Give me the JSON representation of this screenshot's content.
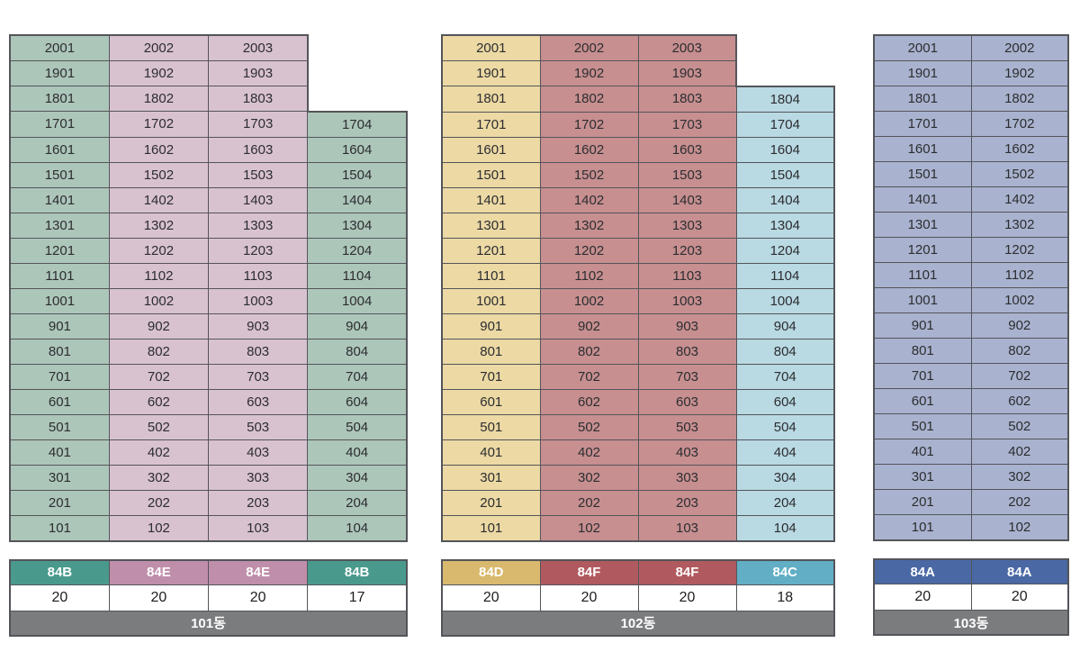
{
  "colors": {
    "background": "#ffffff",
    "grid_border": "#54555a",
    "name_bar_bg": "#7b7c7e",
    "count_bg": "#ffffff",
    "unit_text": "#2c2d30",
    "header_text": "#ffffff"
  },
  "buildings": [
    {
      "id": "101",
      "name_label": "101동",
      "floors_total": 20,
      "columns": [
        {
          "type_label": "84B",
          "unit_count": "20",
          "cell_color": "#adc6ba",
          "header_color": "#499a8c",
          "units": [
            "2001",
            "1901",
            "1801",
            "1701",
            "1601",
            "1501",
            "1401",
            "1301",
            "1201",
            "1101",
            "1001",
            "901",
            "801",
            "701",
            "601",
            "501",
            "401",
            "301",
            "201",
            "101"
          ]
        },
        {
          "type_label": "84E",
          "unit_count": "20",
          "cell_color": "#d9c2d0",
          "header_color": "#bf8eaa",
          "units": [
            "2002",
            "1902",
            "1802",
            "1702",
            "1602",
            "1502",
            "1402",
            "1302",
            "1202",
            "1102",
            "1002",
            "902",
            "802",
            "702",
            "602",
            "502",
            "402",
            "302",
            "202",
            "102"
          ]
        },
        {
          "type_label": "84E",
          "unit_count": "20",
          "cell_color": "#d9c2d0",
          "header_color": "#bf8eaa",
          "units": [
            "2003",
            "1903",
            "1803",
            "1703",
            "1603",
            "1503",
            "1403",
            "1303",
            "1203",
            "1103",
            "1003",
            "903",
            "803",
            "703",
            "603",
            "503",
            "403",
            "303",
            "203",
            "103"
          ]
        },
        {
          "type_label": "84B",
          "unit_count": "17",
          "cell_color": "#adc6ba",
          "header_color": "#499a8c",
          "units": [
            "1704",
            "1604",
            "1504",
            "1404",
            "1304",
            "1204",
            "1104",
            "1004",
            "904",
            "804",
            "704",
            "604",
            "504",
            "404",
            "304",
            "204",
            "104"
          ]
        }
      ]
    },
    {
      "id": "102",
      "name_label": "102동",
      "floors_total": 20,
      "columns": [
        {
          "type_label": "84D",
          "unit_count": "20",
          "cell_color": "#ecd9a4",
          "header_color": "#d8b96d",
          "units": [
            "2001",
            "1901",
            "1801",
            "1701",
            "1601",
            "1501",
            "1401",
            "1301",
            "1201",
            "1101",
            "1001",
            "901",
            "801",
            "701",
            "601",
            "501",
            "401",
            "301",
            "201",
            "101"
          ]
        },
        {
          "type_label": "84F",
          "unit_count": "20",
          "cell_color": "#c78f90",
          "header_color": "#b05a5f",
          "units": [
            "2002",
            "1902",
            "1802",
            "1702",
            "1602",
            "1502",
            "1402",
            "1302",
            "1202",
            "1102",
            "1002",
            "902",
            "802",
            "702",
            "602",
            "502",
            "402",
            "302",
            "202",
            "102"
          ]
        },
        {
          "type_label": "84F",
          "unit_count": "20",
          "cell_color": "#c78f90",
          "header_color": "#b05a5f",
          "units": [
            "2003",
            "1903",
            "1803",
            "1703",
            "1603",
            "1503",
            "1403",
            "1303",
            "1203",
            "1103",
            "1003",
            "903",
            "803",
            "703",
            "603",
            "503",
            "403",
            "303",
            "203",
            "103"
          ]
        },
        {
          "type_label": "84C",
          "unit_count": "18",
          "cell_color": "#b9d9e3",
          "header_color": "#61aec5",
          "units": [
            "1804",
            "1704",
            "1604",
            "1504",
            "1404",
            "1304",
            "1204",
            "1104",
            "1004",
            "904",
            "804",
            "704",
            "604",
            "504",
            "404",
            "304",
            "204",
            "104"
          ]
        }
      ]
    },
    {
      "id": "103",
      "name_label": "103동",
      "floors_total": 20,
      "columns": [
        {
          "type_label": "84A",
          "unit_count": "20",
          "cell_color": "#a9b3cf",
          "header_color": "#4a68a4",
          "units": [
            "2001",
            "1901",
            "1801",
            "1701",
            "1601",
            "1501",
            "1401",
            "1301",
            "1201",
            "1101",
            "1001",
            "901",
            "801",
            "701",
            "601",
            "501",
            "401",
            "301",
            "201",
            "101"
          ]
        },
        {
          "type_label": "84A",
          "unit_count": "20",
          "cell_color": "#a9b3cf",
          "header_color": "#4a68a4",
          "units": [
            "2002",
            "1902",
            "1802",
            "1702",
            "1602",
            "1502",
            "1402",
            "1302",
            "1202",
            "1102",
            "1002",
            "902",
            "802",
            "702",
            "602",
            "502",
            "402",
            "302",
            "202",
            "102"
          ]
        }
      ]
    }
  ]
}
